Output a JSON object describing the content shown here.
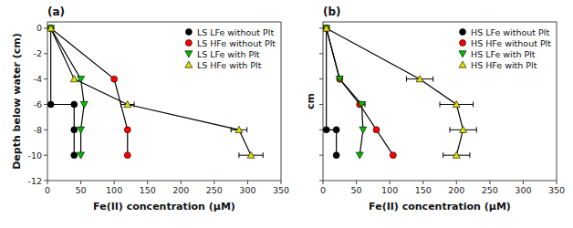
{
  "chart_data": [
    {
      "type": "line",
      "title": "(a)",
      "x_label": "Fe(II) concentration (μM)",
      "y_label": "Depth below water (cm)",
      "xlim": [
        0,
        350
      ],
      "ylim": [
        -12,
        0.5
      ],
      "xticks": [
        0,
        50,
        100,
        150,
        200,
        250,
        300,
        350
      ],
      "yticks": [
        0,
        -2,
        -4,
        -6,
        -8,
        -10,
        -12
      ],
      "legend": "upper right",
      "series": [
        {
          "name": "LS LFe without Plt",
          "color": "#000000",
          "marker": "circle",
          "x": [
            5,
            5,
            40,
            40,
            40
          ],
          "values": [
            0,
            -6,
            -6,
            -8,
            -10
          ],
          "xerr": [
            null,
            null,
            null,
            null,
            null
          ]
        },
        {
          "name": "LS HFe without Plt",
          "color": "#ff0000",
          "marker": "circle",
          "x": [
            5,
            100,
            120,
            120
          ],
          "values": [
            0,
            -4,
            -8,
            -10
          ],
          "xerr": [
            null,
            null,
            null,
            null
          ]
        },
        {
          "name": "LS LFe with Plt",
          "color": "#00bb00",
          "marker": "triangle-down",
          "x": [
            5,
            50,
            55,
            50,
            50
          ],
          "values": [
            0,
            -4,
            -6,
            -8,
            -10
          ],
          "xerr": [
            null,
            null,
            null,
            null,
            null
          ]
        },
        {
          "name": "LS HFe with Plt",
          "color": "#dddd00",
          "marker": "triangle-up",
          "x": [
            5,
            40,
            120,
            287,
            305
          ],
          "values": [
            0,
            -4,
            -6,
            -8,
            -10
          ],
          "xerr": [
            null,
            null,
            10,
            12,
            18
          ]
        }
      ]
    },
    {
      "type": "line",
      "title": "(b)",
      "x_label": "Fe(II) concentration (μM)",
      "y_label": "cm",
      "xlim": [
        0,
        350
      ],
      "ylim": [
        -12,
        0.5
      ],
      "xticks": [
        0,
        50,
        100,
        150,
        200,
        250,
        300,
        350
      ],
      "yticks": [
        0,
        -2,
        -4,
        -6,
        -8,
        -10,
        -12
      ],
      "tick_labels": "x",
      "legend": "upper right",
      "series": [
        {
          "name": "HS LFe without Plt",
          "color": "#000000",
          "marker": "circle",
          "x": [
            5,
            5,
            20,
            20
          ],
          "values": [
            0,
            -8,
            -8,
            -10
          ],
          "xerr": [
            null,
            null,
            null,
            null
          ]
        },
        {
          "name": "HS HFe without Plt",
          "color": "#ff0000",
          "marker": "circle",
          "x": [
            5,
            25,
            55,
            80,
            105
          ],
          "values": [
            0,
            -4,
            -6,
            -8,
            -10
          ],
          "xerr": [
            null,
            null,
            null,
            null,
            null
          ]
        },
        {
          "name": "HS LFe with Plt",
          "color": "#00bb00",
          "marker": "triangle-down",
          "x": [
            5,
            25,
            58,
            60,
            55
          ],
          "values": [
            0,
            -4,
            -6,
            -8,
            -10
          ],
          "xerr": [
            null,
            null,
            5,
            null,
            null
          ]
        },
        {
          "name": "HS HFe with Plt",
          "color": "#dddd00",
          "marker": "triangle-up",
          "x": [
            5,
            145,
            200,
            210,
            200
          ],
          "values": [
            0,
            -4,
            -6,
            -8,
            -10
          ],
          "xerr": [
            null,
            20,
            25,
            20,
            20
          ]
        }
      ]
    }
  ]
}
